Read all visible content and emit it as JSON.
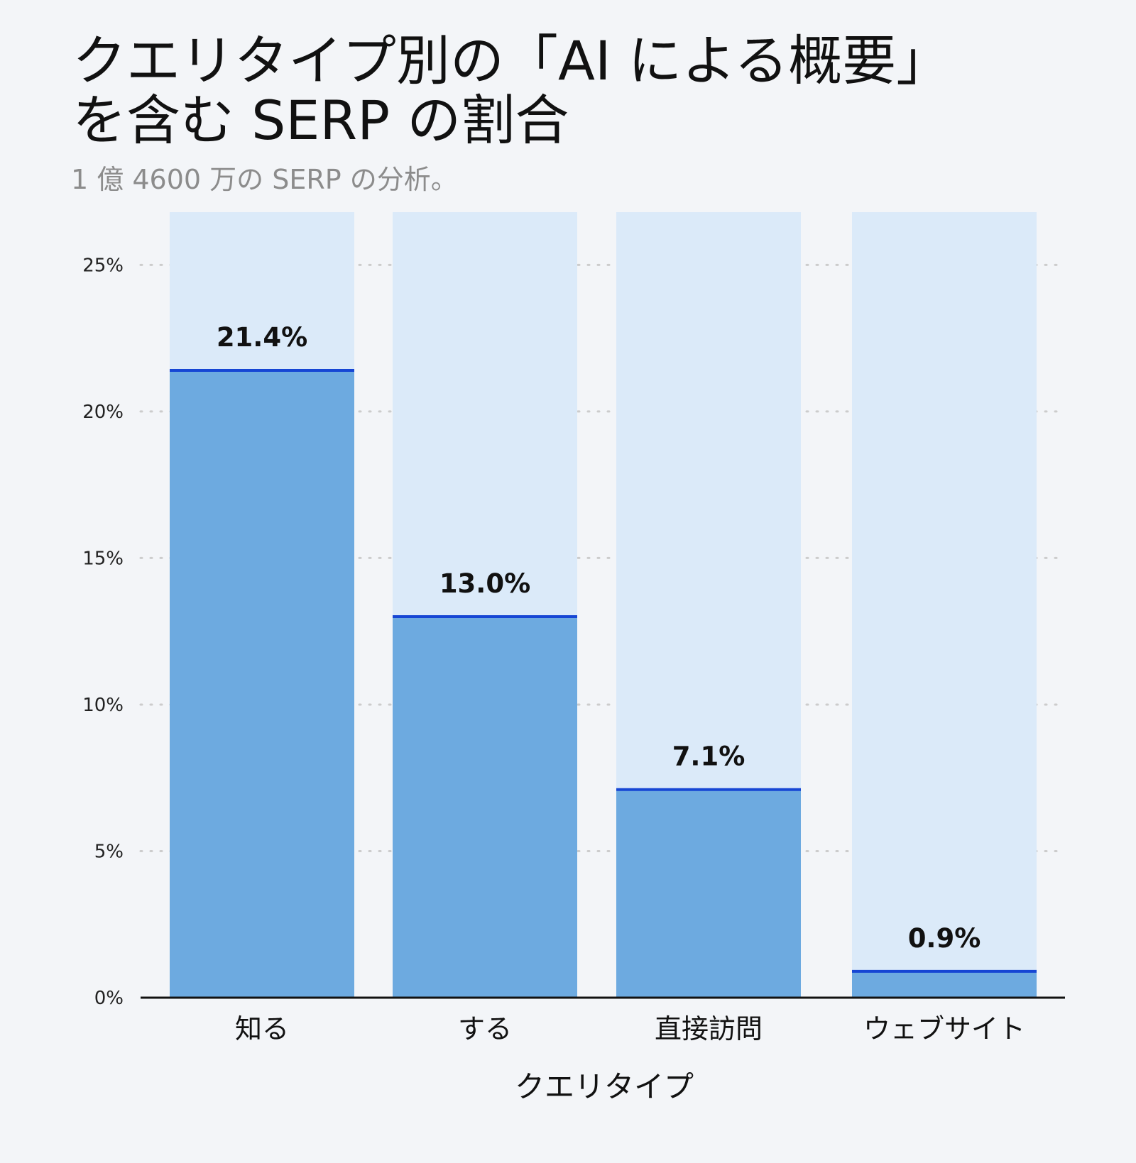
{
  "title_line1": "クエリタイプ別の「AI による概要」",
  "title_line2": "を含む SERP の割合",
  "subtitle": "1 億 4600 万の SERP の分析。",
  "colors": {
    "background": "#f3f5f8",
    "bar_track": "#dbeaf9",
    "bar_fill": "#6daae0",
    "bar_top_line": "#1646d4",
    "gridline": "#cccccc",
    "axis": "#111111"
  },
  "chart_data": {
    "type": "bar",
    "title": "クエリタイプ別の「AI による概要」を含む SERP の割合",
    "subtitle": "1 億 4600 万の SERP の分析。",
    "categories": [
      "知る",
      "する",
      "直接訪問",
      "ウェブサイト"
    ],
    "values": [
      21.4,
      13.0,
      7.1,
      0.9
    ],
    "value_labels": [
      "21.4%",
      "13.0%",
      "7.1%",
      "0.9%"
    ],
    "xlabel": "クエリタイプ",
    "ylabel": "",
    "ylim": [
      0,
      26.8
    ],
    "yticks": [
      0,
      5,
      10,
      15,
      20,
      25
    ],
    "ytick_labels": [
      "0%",
      "5%",
      "10%",
      "15%",
      "20%",
      "25%"
    ],
    "grid": "dotted horizontal",
    "legend": "none"
  }
}
